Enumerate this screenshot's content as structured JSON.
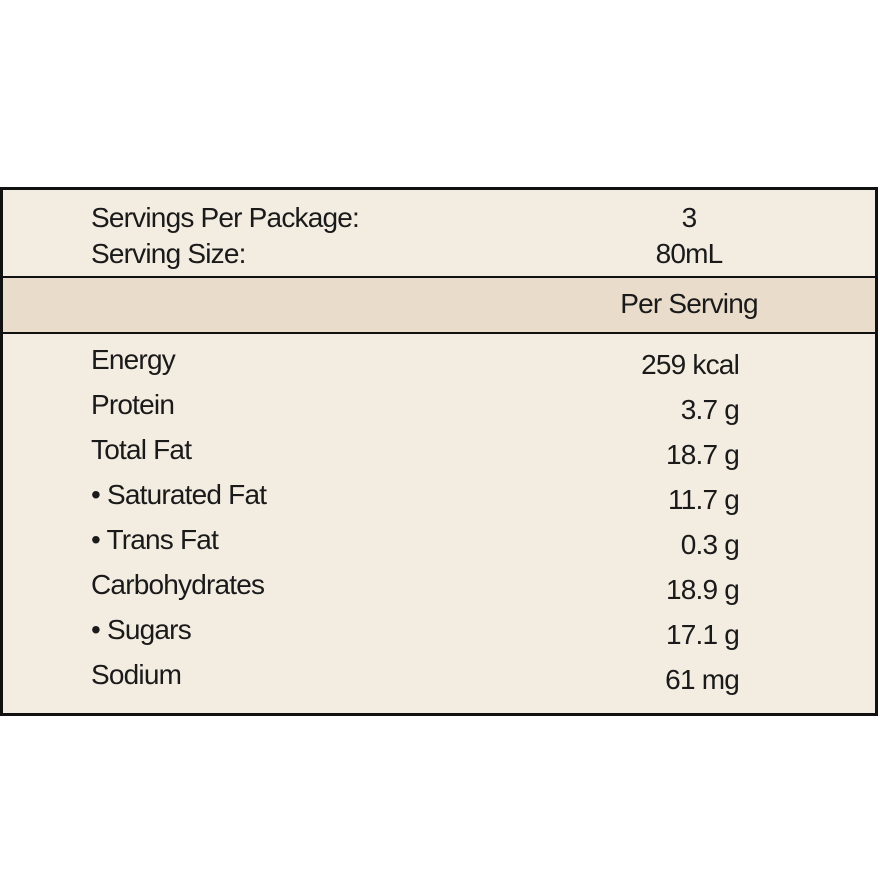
{
  "header": {
    "rows": [
      [
        "Servings Per Package:",
        "3"
      ],
      [
        "Serving Size:",
        "80mL"
      ]
    ]
  },
  "table": {
    "column_header": "Per Serving",
    "rows": [
      [
        "Energy",
        "259 kcal"
      ],
      [
        "Protein",
        "3.7 g"
      ],
      [
        "Total Fat",
        "18.7 g"
      ],
      [
        "• Saturated Fat",
        "11.7 g"
      ],
      [
        "• Trans Fat",
        "0.3 g"
      ],
      [
        "Carbohydrates",
        "18.9 g"
      ],
      [
        "• Sugars",
        "17.1 g"
      ],
      [
        "Sodium",
        "61 mg"
      ]
    ]
  }
}
